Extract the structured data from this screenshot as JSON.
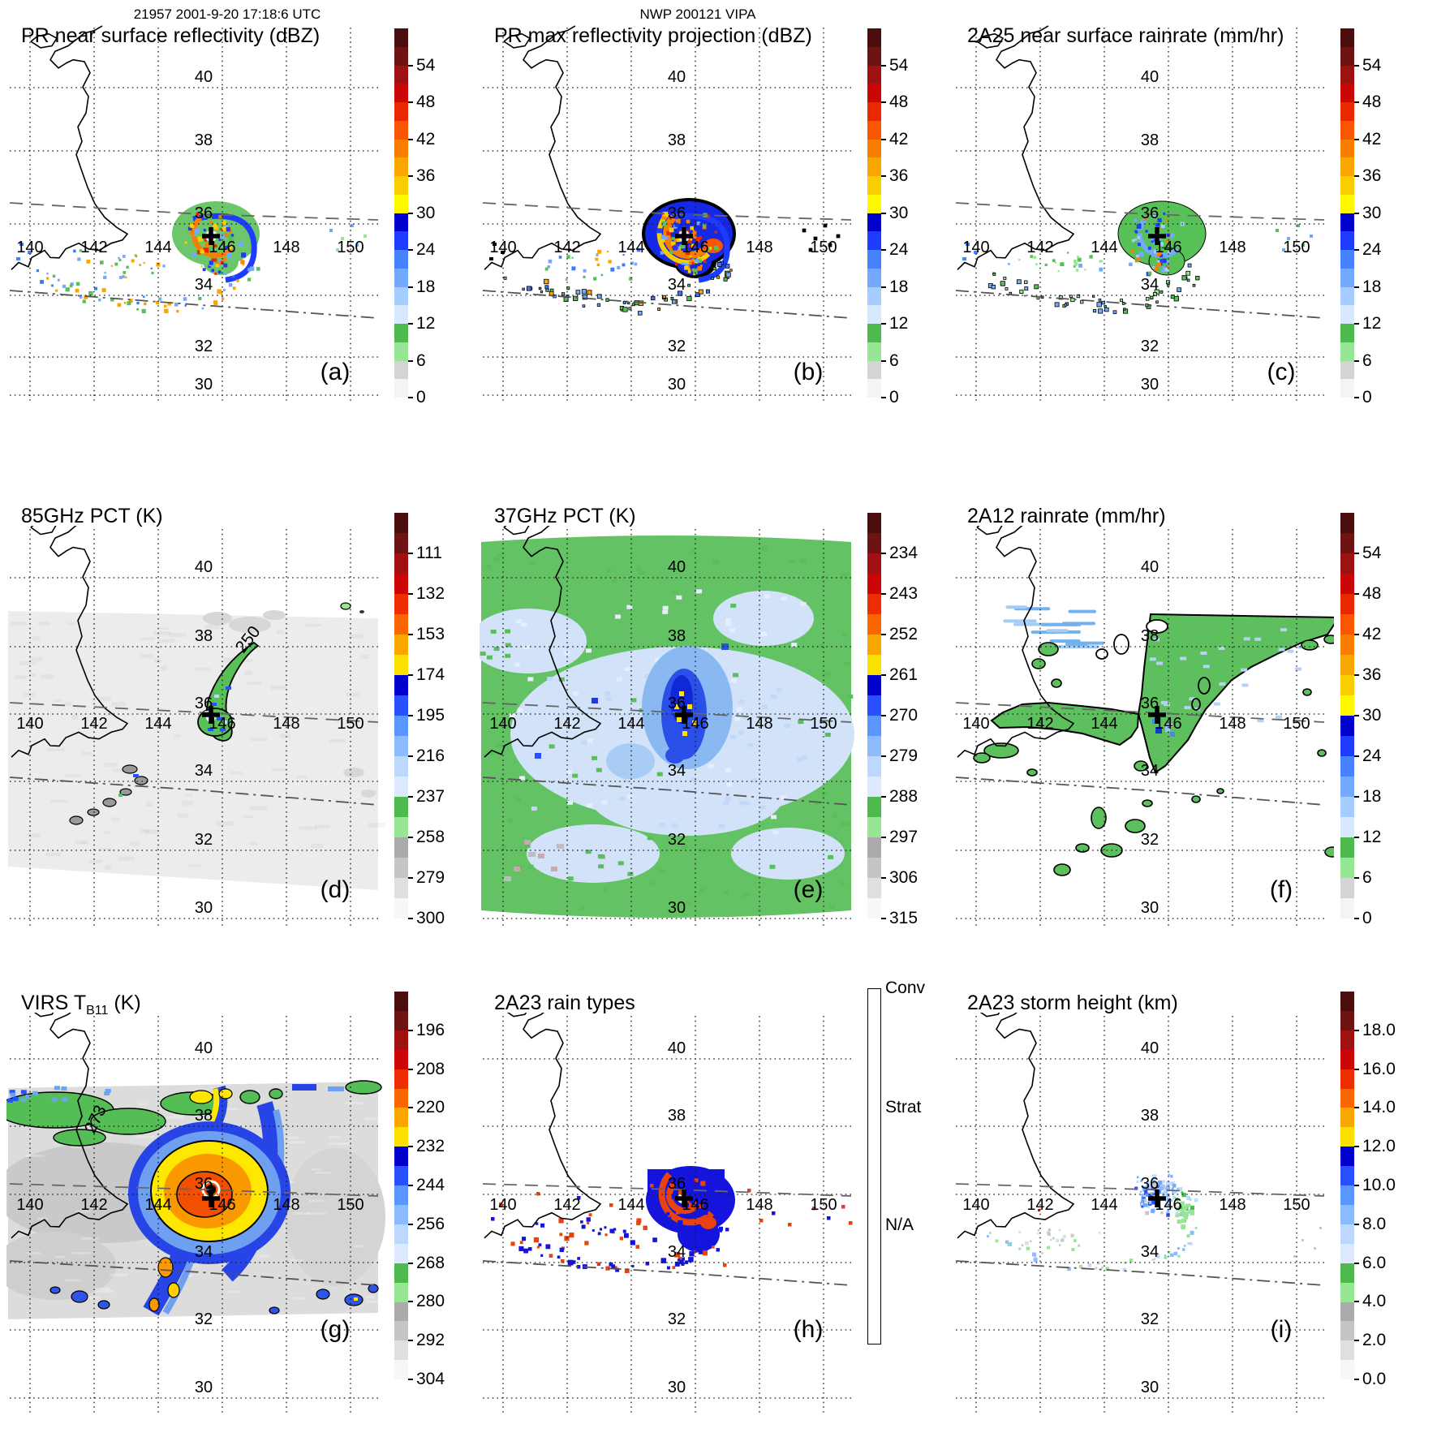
{
  "header": {
    "left": "21957 2001-9-20 17:18:6 UTC",
    "center": "NWP 200121 VIPA"
  },
  "geo": {
    "lon_labels": [
      "140",
      "142",
      "144",
      "146",
      "148",
      "150"
    ],
    "lat_labels": [
      "40",
      "38",
      "36",
      "34",
      "32",
      "30"
    ]
  },
  "palettes": {
    "radar": [
      "#4a0e0e",
      "#6e1212",
      "#9e1111",
      "#c90707",
      "#ea2800",
      "#fa5500",
      "#fa7d00",
      "#f9a600",
      "#f9ce00",
      "#fdf800",
      "#0000cd",
      "#1e3cff",
      "#4682ff",
      "#73aaff",
      "#a5cdff",
      "#d7e8ff",
      "#4eba4e",
      "#96e696",
      "#d4d4d4",
      "#f4f4f4"
    ],
    "pct": [
      "#4a0e0e",
      "#6e1212",
      "#a01111",
      "#cc0606",
      "#ee2d00",
      "#fa6600",
      "#f9a600",
      "#fbe000",
      "#0000cd",
      "#2850ff",
      "#5a96ff",
      "#8cbcff",
      "#bcd8ff",
      "#dce9ff",
      "#4eba4e",
      "#96e696",
      "#ababab",
      "#c5c5c5",
      "#dfdfdf",
      "#f7f7f7"
    ]
  },
  "colorbars": {
    "dbz": {
      "palette": "radar",
      "ticks": [
        "54",
        "48",
        "42",
        "36",
        "30",
        "24",
        "18",
        "12",
        "6",
        "0"
      ]
    },
    "rain": {
      "palette": "radar",
      "ticks": [
        "54",
        "48",
        "42",
        "36",
        "30",
        "24",
        "18",
        "12",
        "6",
        "0"
      ]
    },
    "pct85": {
      "palette": "pct",
      "ticks": [
        "111",
        "132",
        "153",
        "174",
        "195",
        "216",
        "237",
        "258",
        "279",
        "300"
      ]
    },
    "pct37": {
      "palette": "pct",
      "ticks": [
        "234",
        "243",
        "252",
        "261",
        "270",
        "279",
        "288",
        "297",
        "306",
        "315"
      ]
    },
    "virs": {
      "palette": "pct",
      "ticks": [
        "196",
        "208",
        "220",
        "232",
        "244",
        "256",
        "268",
        "280",
        "292",
        "304"
      ]
    },
    "height": {
      "palette": "pct",
      "ticks": [
        "18.0",
        "16.0",
        "14.0",
        "12.0",
        "10.0",
        "8.0",
        "6.0",
        "4.0",
        "2.0",
        "0.0"
      ]
    },
    "raintype": {
      "labels": [
        "Conv",
        "Strat",
        "N/A"
      ],
      "colors": [
        "#e8430f",
        "#0a0ae0",
        "#ffffff"
      ]
    }
  },
  "panels": [
    {
      "id": "a",
      "letter": "(a)",
      "title": "PR near surface reflectivity (dBZ)",
      "colorbar": "dbz",
      "style": "pr_a"
    },
    {
      "id": "b",
      "letter": "(b)",
      "title": "PR max reflectivity projection (dBZ)",
      "colorbar": "dbz",
      "style": "pr_b"
    },
    {
      "id": "c",
      "letter": "(c)",
      "title": "2A25 near surface rainrate (mm/hr)",
      "colorbar": "rain",
      "style": "pr_c"
    },
    {
      "id": "d",
      "letter": "(d)",
      "title": "85GHz PCT (K)",
      "colorbar": "pct85",
      "style": "pct85",
      "contour_label": "250"
    },
    {
      "id": "e",
      "letter": "(e)",
      "title": "37GHz PCT (K)",
      "colorbar": "pct37",
      "style": "pct37"
    },
    {
      "id": "f",
      "letter": "(f)",
      "title": "2A12 rainrate (mm/hr)",
      "colorbar": "rain",
      "style": "tmi"
    },
    {
      "id": "g",
      "letter": "(g)",
      "title_prefix": "VIRS T",
      "title_sub": "B11",
      "title_suffix": " (K)",
      "colorbar": "virs",
      "style": "virs",
      "contour_label": "273"
    },
    {
      "id": "h",
      "letter": "(h)",
      "title": "2A23 rain types",
      "colorbar": "raintype",
      "style": "rtype"
    },
    {
      "id": "i",
      "letter": "(i)",
      "title": "2A23 storm height (km)",
      "colorbar": "height",
      "style": "shgt"
    }
  ],
  "chart_data": [
    {
      "type": "heatmap",
      "panel": "(a)",
      "title": "PR near surface reflectivity (dBZ)",
      "x": "longitude_deg_E",
      "y": "latitude_deg_N",
      "xlim": [
        139.3,
        151.6
      ],
      "ylim": [
        29.6,
        42.0
      ],
      "x_ticks": [
        140,
        142,
        144,
        146,
        148,
        150
      ],
      "y_ticks": [
        30,
        32,
        34,
        36,
        38,
        40
      ],
      "colorbar_ticks": [
        0,
        6,
        12,
        18,
        24,
        30,
        36,
        42,
        48,
        54
      ],
      "colorbar_units": "dBZ",
      "storm_center": {
        "lon": 145.6,
        "lat": 35.9
      },
      "notes": "narrow PR swath between ~36.2N and ~34N; typhoon eyewall 30-45 dBZ around clear eye; outer rainband arc of 20-35 dBZ echoes toward southwest"
    },
    {
      "type": "heatmap",
      "panel": "(b)",
      "title": "PR max reflectivity projection (dBZ)",
      "colorbar_ticks": [
        0,
        6,
        12,
        18,
        24,
        30,
        36,
        42,
        48,
        54
      ],
      "colorbar_units": "dBZ",
      "storm_center": {
        "lon": 145.6,
        "lat": 35.9
      },
      "notes": "same swath as (a) but denser/stronger echoes with black contour outlines"
    },
    {
      "type": "heatmap",
      "panel": "(c)",
      "title": "2A25 near surface rainrate (mm/hr)",
      "colorbar_ticks": [
        0,
        6,
        12,
        18,
        24,
        30,
        36,
        42,
        48,
        54
      ],
      "colorbar_units": "mm/hr",
      "storm_center": {
        "lon": 145.6,
        "lat": 35.9
      },
      "notes": "mostly 1-12 mm/hr (green) with embedded 18-30 mm/hr (blue) pixels in eyewall and rainband"
    },
    {
      "type": "heatmap",
      "panel": "(d)",
      "title": "85GHz PCT (K)",
      "colorbar_ticks": [
        111,
        132,
        153,
        174,
        195,
        216,
        237,
        258,
        279,
        300
      ],
      "colorbar_units": "K",
      "contour_level": 250,
      "notes": "TMI swath of ~280-300 K background; comma-shaped 225-250 K depression along eyewall and north rainband, outlined by 250 K contour"
    },
    {
      "type": "heatmap",
      "panel": "(e)",
      "title": "37GHz PCT (K)",
      "colorbar_ticks": [
        234,
        243,
        252,
        261,
        270,
        279,
        288,
        297,
        306,
        315
      ],
      "colorbar_units": "K",
      "notes": "wide swath: ~285-295 K (green) ocean background, 270-282 K (pale blue) shield, 261-270 K (blue) inner core with few ~258-261 K (yellow) eyewall pixels"
    },
    {
      "type": "heatmap",
      "panel": "(f)",
      "title": "2A12 rainrate (mm/hr)",
      "colorbar_ticks": [
        0,
        6,
        12,
        18,
        24,
        30,
        36,
        42,
        48,
        54
      ],
      "colorbar_units": "mm/hr",
      "notes": "large 1-10 mm/hr (green) wedge north-east of storm with 12-24 mm/hr (blue) streak near center; scattered light rain cells south of 34N"
    },
    {
      "type": "heatmap",
      "panel": "(g)",
      "title": "VIRS T_B11 (K)",
      "colorbar_ticks": [
        196,
        208,
        220,
        232,
        244,
        256,
        268,
        280,
        292,
        304
      ],
      "colorbar_units": "K",
      "contour_level": 273,
      "notes": "IR cloud-top temperatures: ~208-220 K (orange/red) central dense overcast, 232 K (yellow) ring, 244-256 K (blue) shield, gray ~280-300 K clear air, green ~268-276 K band over NW"
    },
    {
      "type": "heatmap",
      "panel": "(h)",
      "title": "2A23 rain types",
      "categories": [
        "Conv",
        "Strat",
        "N/A"
      ],
      "notes": "stratiform (blue) eyewall/rainband region with convective (orange-red) cores arranged in spiral; scattered convective cells along outer band"
    },
    {
      "type": "heatmap",
      "panel": "(i)",
      "title": "2A23 storm height (km)",
      "colorbar_ticks": [
        0,
        2,
        4,
        6,
        8,
        10,
        12,
        14,
        16,
        18
      ],
      "colorbar_units": "km",
      "notes": "storm heights mostly 4-10 km (gray/green/light blue) near the eyewall and outer band"
    }
  ]
}
